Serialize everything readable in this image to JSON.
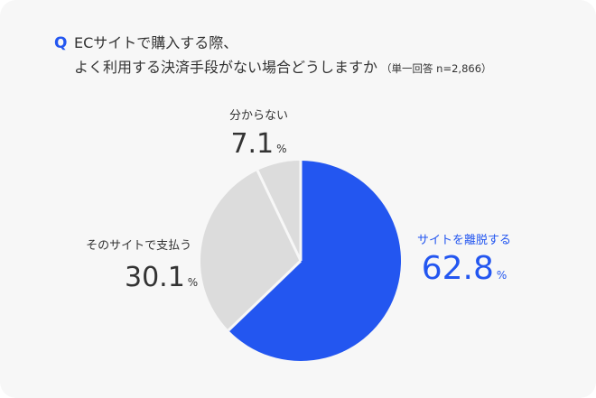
{
  "question": {
    "mark": "Q",
    "line1": "ECサイトで購入する際、",
    "line2": "よく利用する決済手段がない場合どうしますか",
    "note": "（単一回答 n=2,866）"
  },
  "colors": {
    "accent": "#2356f0",
    "grey": "#dcdcdc",
    "text": "#333333",
    "background": "#f7f7f7"
  },
  "chart_data": {
    "type": "pie",
    "unit": "%",
    "slices": [
      {
        "label": "サイトを離脱する",
        "value": 62.8,
        "color": "#2356f0"
      },
      {
        "label": "そのサイトで支払う",
        "value": 30.1,
        "color": "#dcdcdc"
      },
      {
        "label": "分からない",
        "value": 7.1,
        "color": "#dcdcdc"
      }
    ]
  }
}
